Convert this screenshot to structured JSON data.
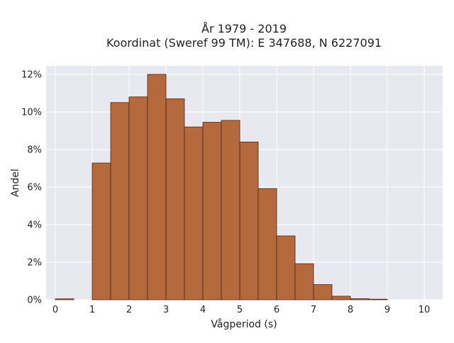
{
  "chart_data": {
    "type": "bar",
    "title_line1": "År 1979 - 2019",
    "title_line2": "Koordinat (Sweref 99 TM): E 347688, N 6227091",
    "xlabel": "Vågperiod (s)",
    "ylabel": "Andel",
    "xlim": [
      -0.25,
      10.5
    ],
    "ylim": [
      0,
      0.1245
    ],
    "xticks": [
      0,
      1,
      2,
      3,
      4,
      5,
      6,
      7,
      8,
      9,
      10
    ],
    "xtick_labels": [
      "0",
      "1",
      "2",
      "3",
      "4",
      "5",
      "6",
      "7",
      "8",
      "9",
      "10"
    ],
    "yticks": [
      0,
      0.02,
      0.04,
      0.06,
      0.08,
      0.1,
      0.12
    ],
    "ytick_labels": [
      "0%",
      "2%",
      "4%",
      "6%",
      "8%",
      "10%",
      "12%"
    ],
    "bin_width": 0.5,
    "bins": [
      {
        "start": 0.0,
        "value": 0.0005
      },
      {
        "start": 0.5,
        "value": 0.0
      },
      {
        "start": 1.0,
        "value": 0.0728
      },
      {
        "start": 1.5,
        "value": 0.105
      },
      {
        "start": 2.0,
        "value": 0.108
      },
      {
        "start": 2.5,
        "value": 0.12
      },
      {
        "start": 3.0,
        "value": 0.107
      },
      {
        "start": 3.5,
        "value": 0.092
      },
      {
        "start": 4.0,
        "value": 0.0945
      },
      {
        "start": 4.5,
        "value": 0.0955
      },
      {
        "start": 5.0,
        "value": 0.084
      },
      {
        "start": 5.5,
        "value": 0.0592
      },
      {
        "start": 6.0,
        "value": 0.034
      },
      {
        "start": 6.5,
        "value": 0.0192
      },
      {
        "start": 7.0,
        "value": 0.0081
      },
      {
        "start": 7.5,
        "value": 0.0019
      },
      {
        "start": 8.0,
        "value": 0.0006
      },
      {
        "start": 8.5,
        "value": 0.0002
      }
    ],
    "grid": true,
    "colors": {
      "bar_fill": "#b46a3c",
      "bar_stroke": "#4a2a18",
      "plot_bg": "#e8e8f0",
      "grid": "#ffffff"
    }
  }
}
